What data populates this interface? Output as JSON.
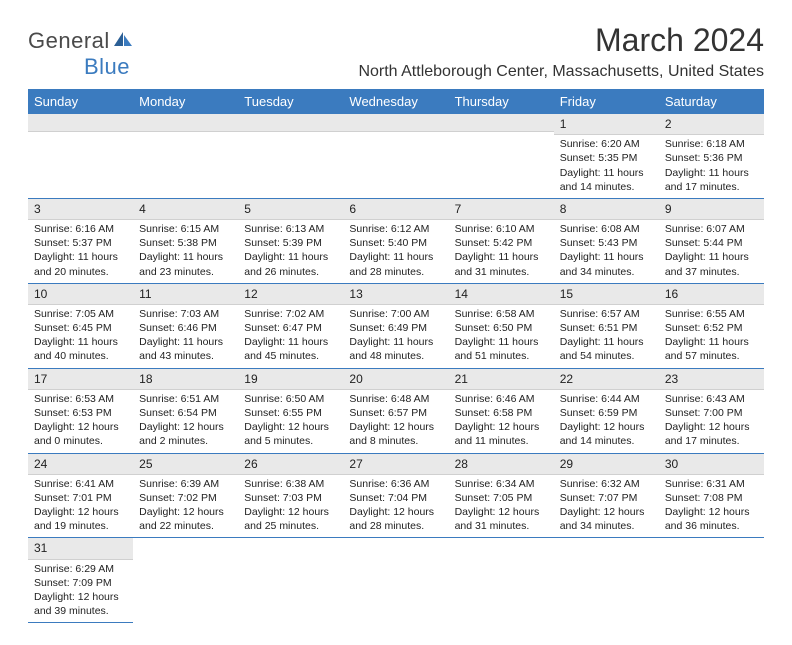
{
  "logo": {
    "text1": "General",
    "text2": "Blue"
  },
  "title": "March 2024",
  "location": "North Attleborough Center, Massachusetts, United States",
  "colors": {
    "brand_blue": "#3b7bbf",
    "header_bg": "#3b7bbf",
    "header_text": "#ffffff",
    "daynum_bg": "#e9e9e9",
    "divider": "#3b7bbf",
    "text": "#222222",
    "background": "#ffffff"
  },
  "fonts": {
    "title_size": 32,
    "location_size": 16,
    "dayhead_size": 13,
    "cell_size": 10.5
  },
  "day_headers": [
    "Sunday",
    "Monday",
    "Tuesday",
    "Wednesday",
    "Thursday",
    "Friday",
    "Saturday"
  ],
  "weeks": [
    [
      null,
      null,
      null,
      null,
      null,
      {
        "n": "1",
        "sr": "Sunrise: 6:20 AM",
        "ss": "Sunset: 5:35 PM",
        "d1": "Daylight: 11 hours",
        "d2": "and 14 minutes."
      },
      {
        "n": "2",
        "sr": "Sunrise: 6:18 AM",
        "ss": "Sunset: 5:36 PM",
        "d1": "Daylight: 11 hours",
        "d2": "and 17 minutes."
      }
    ],
    [
      {
        "n": "3",
        "sr": "Sunrise: 6:16 AM",
        "ss": "Sunset: 5:37 PM",
        "d1": "Daylight: 11 hours",
        "d2": "and 20 minutes."
      },
      {
        "n": "4",
        "sr": "Sunrise: 6:15 AM",
        "ss": "Sunset: 5:38 PM",
        "d1": "Daylight: 11 hours",
        "d2": "and 23 minutes."
      },
      {
        "n": "5",
        "sr": "Sunrise: 6:13 AM",
        "ss": "Sunset: 5:39 PM",
        "d1": "Daylight: 11 hours",
        "d2": "and 26 minutes."
      },
      {
        "n": "6",
        "sr": "Sunrise: 6:12 AM",
        "ss": "Sunset: 5:40 PM",
        "d1": "Daylight: 11 hours",
        "d2": "and 28 minutes."
      },
      {
        "n": "7",
        "sr": "Sunrise: 6:10 AM",
        "ss": "Sunset: 5:42 PM",
        "d1": "Daylight: 11 hours",
        "d2": "and 31 minutes."
      },
      {
        "n": "8",
        "sr": "Sunrise: 6:08 AM",
        "ss": "Sunset: 5:43 PM",
        "d1": "Daylight: 11 hours",
        "d2": "and 34 minutes."
      },
      {
        "n": "9",
        "sr": "Sunrise: 6:07 AM",
        "ss": "Sunset: 5:44 PM",
        "d1": "Daylight: 11 hours",
        "d2": "and 37 minutes."
      }
    ],
    [
      {
        "n": "10",
        "sr": "Sunrise: 7:05 AM",
        "ss": "Sunset: 6:45 PM",
        "d1": "Daylight: 11 hours",
        "d2": "and 40 minutes."
      },
      {
        "n": "11",
        "sr": "Sunrise: 7:03 AM",
        "ss": "Sunset: 6:46 PM",
        "d1": "Daylight: 11 hours",
        "d2": "and 43 minutes."
      },
      {
        "n": "12",
        "sr": "Sunrise: 7:02 AM",
        "ss": "Sunset: 6:47 PM",
        "d1": "Daylight: 11 hours",
        "d2": "and 45 minutes."
      },
      {
        "n": "13",
        "sr": "Sunrise: 7:00 AM",
        "ss": "Sunset: 6:49 PM",
        "d1": "Daylight: 11 hours",
        "d2": "and 48 minutes."
      },
      {
        "n": "14",
        "sr": "Sunrise: 6:58 AM",
        "ss": "Sunset: 6:50 PM",
        "d1": "Daylight: 11 hours",
        "d2": "and 51 minutes."
      },
      {
        "n": "15",
        "sr": "Sunrise: 6:57 AM",
        "ss": "Sunset: 6:51 PM",
        "d1": "Daylight: 11 hours",
        "d2": "and 54 minutes."
      },
      {
        "n": "16",
        "sr": "Sunrise: 6:55 AM",
        "ss": "Sunset: 6:52 PM",
        "d1": "Daylight: 11 hours",
        "d2": "and 57 minutes."
      }
    ],
    [
      {
        "n": "17",
        "sr": "Sunrise: 6:53 AM",
        "ss": "Sunset: 6:53 PM",
        "d1": "Daylight: 12 hours",
        "d2": "and 0 minutes."
      },
      {
        "n": "18",
        "sr": "Sunrise: 6:51 AM",
        "ss": "Sunset: 6:54 PM",
        "d1": "Daylight: 12 hours",
        "d2": "and 2 minutes."
      },
      {
        "n": "19",
        "sr": "Sunrise: 6:50 AM",
        "ss": "Sunset: 6:55 PM",
        "d1": "Daylight: 12 hours",
        "d2": "and 5 minutes."
      },
      {
        "n": "20",
        "sr": "Sunrise: 6:48 AM",
        "ss": "Sunset: 6:57 PM",
        "d1": "Daylight: 12 hours",
        "d2": "and 8 minutes."
      },
      {
        "n": "21",
        "sr": "Sunrise: 6:46 AM",
        "ss": "Sunset: 6:58 PM",
        "d1": "Daylight: 12 hours",
        "d2": "and 11 minutes."
      },
      {
        "n": "22",
        "sr": "Sunrise: 6:44 AM",
        "ss": "Sunset: 6:59 PM",
        "d1": "Daylight: 12 hours",
        "d2": "and 14 minutes."
      },
      {
        "n": "23",
        "sr": "Sunrise: 6:43 AM",
        "ss": "Sunset: 7:00 PM",
        "d1": "Daylight: 12 hours",
        "d2": "and 17 minutes."
      }
    ],
    [
      {
        "n": "24",
        "sr": "Sunrise: 6:41 AM",
        "ss": "Sunset: 7:01 PM",
        "d1": "Daylight: 12 hours",
        "d2": "and 19 minutes."
      },
      {
        "n": "25",
        "sr": "Sunrise: 6:39 AM",
        "ss": "Sunset: 7:02 PM",
        "d1": "Daylight: 12 hours",
        "d2": "and 22 minutes."
      },
      {
        "n": "26",
        "sr": "Sunrise: 6:38 AM",
        "ss": "Sunset: 7:03 PM",
        "d1": "Daylight: 12 hours",
        "d2": "and 25 minutes."
      },
      {
        "n": "27",
        "sr": "Sunrise: 6:36 AM",
        "ss": "Sunset: 7:04 PM",
        "d1": "Daylight: 12 hours",
        "d2": "and 28 minutes."
      },
      {
        "n": "28",
        "sr": "Sunrise: 6:34 AM",
        "ss": "Sunset: 7:05 PM",
        "d1": "Daylight: 12 hours",
        "d2": "and 31 minutes."
      },
      {
        "n": "29",
        "sr": "Sunrise: 6:32 AM",
        "ss": "Sunset: 7:07 PM",
        "d1": "Daylight: 12 hours",
        "d2": "and 34 minutes."
      },
      {
        "n": "30",
        "sr": "Sunrise: 6:31 AM",
        "ss": "Sunset: 7:08 PM",
        "d1": "Daylight: 12 hours",
        "d2": "and 36 minutes."
      }
    ],
    [
      {
        "n": "31",
        "sr": "Sunrise: 6:29 AM",
        "ss": "Sunset: 7:09 PM",
        "d1": "Daylight: 12 hours",
        "d2": "and 39 minutes."
      },
      null,
      null,
      null,
      null,
      null,
      null
    ]
  ]
}
